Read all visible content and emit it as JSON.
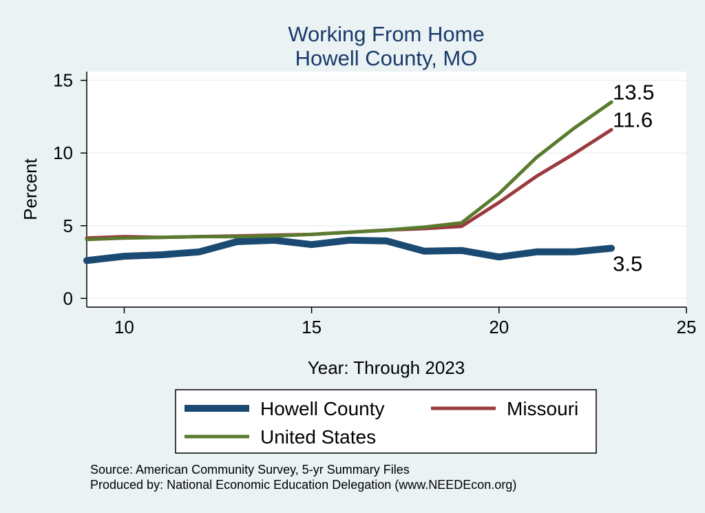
{
  "chart_data": {
    "type": "line",
    "title": [
      "Working From Home",
      "Howell County, MO"
    ],
    "xlabel": "Year: Through 2023",
    "ylabel": "Percent",
    "xlim": [
      9,
      25
    ],
    "ylim": [
      -0.6,
      15.6
    ],
    "xticks": [
      10,
      15,
      20,
      25
    ],
    "yticks": [
      0,
      5,
      10,
      15
    ],
    "grid": "horizontal",
    "legend_position": "bottom",
    "series": [
      {
        "name": "Howell County",
        "color": "#1a4a72",
        "width": 10,
        "x": [
          9,
          10,
          11,
          12,
          13,
          14,
          15,
          16,
          17,
          18,
          19,
          20,
          21,
          22,
          23
        ],
        "y": [
          2.6,
          2.9,
          3.0,
          3.2,
          3.9,
          4.0,
          3.7,
          4.0,
          3.95,
          3.25,
          3.3,
          2.85,
          3.2,
          3.2,
          3.45
        ]
      },
      {
        "name": "Missouri",
        "color": "#9b3a3e",
        "width": 5,
        "x": [
          9,
          10,
          11,
          12,
          13,
          14,
          15,
          16,
          17,
          18,
          19,
          20,
          21,
          22,
          23
        ],
        "y": [
          4.15,
          4.25,
          4.2,
          4.25,
          4.3,
          4.35,
          4.4,
          4.55,
          4.7,
          4.8,
          4.95,
          6.6,
          8.4,
          9.95,
          11.6
        ]
      },
      {
        "name": "United States",
        "color": "#5a7a2e",
        "width": 5,
        "x": [
          9,
          10,
          11,
          12,
          13,
          14,
          15,
          16,
          17,
          18,
          19,
          20,
          21,
          22,
          23
        ],
        "y": [
          4.05,
          4.15,
          4.2,
          4.25,
          4.25,
          4.3,
          4.4,
          4.55,
          4.7,
          4.9,
          5.2,
          7.2,
          9.7,
          11.7,
          13.5
        ]
      }
    ],
    "end_labels": [
      {
        "series": "United States",
        "text": "13.5",
        "y": 13.5
      },
      {
        "series": "Missouri",
        "text": "11.6",
        "y": 11.6
      },
      {
        "series": "Howell County",
        "text": "3.5",
        "y": 3.5
      }
    ],
    "source": [
      "Source: American Community Survey, 5-yr Summary Files",
      "Produced by: National Economic Education Delegation (www.NEEDEcon.org)"
    ]
  }
}
